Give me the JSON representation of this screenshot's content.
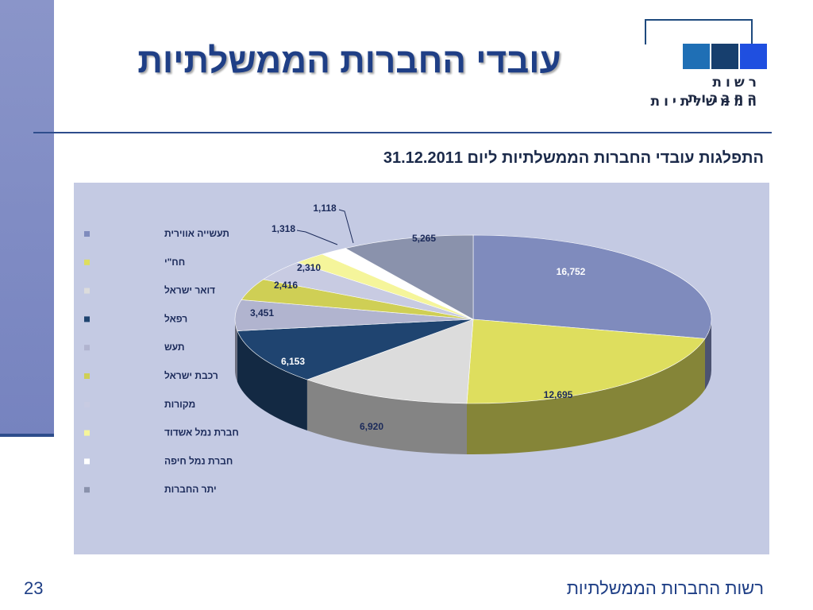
{
  "slide": {
    "title": "עובדי החברות הממשלתיות",
    "footer": "רשות החברות הממשלתיות",
    "page_number": "23"
  },
  "logo": {
    "line1": "רשות החברות",
    "line2": "הממשלתיות",
    "square_colors": [
      "#1f6fb5",
      "#173f6e",
      "#1f4fe0"
    ]
  },
  "chart_data": {
    "type": "pie",
    "title": "התפלגות עובדי החברות הממשלתיות ליום  31.12.2011",
    "legend_position": "left",
    "categories": [
      "תעשייה אווירית",
      "חח\"י",
      "דואר ישראל",
      "רפאל",
      "תעש",
      "רכבת ישראל",
      "מקורות",
      "חברת נמל אשדוד",
      "חברת נמל חיפה",
      "יתר החברות"
    ],
    "values": [
      16752,
      12695,
      6920,
      6153,
      3451,
      2416,
      2310,
      1318,
      1118,
      5265
    ],
    "value_labels": [
      "16,752",
      "12,695",
      "6,920",
      "6,153",
      "3,451",
      "2,416",
      "2,310",
      "1,318",
      "1,118",
      "5,265"
    ],
    "colors": [
      "#7f8bbd",
      "#dede5e",
      "#dcdcdc",
      "#1f4470",
      "#b1b4cf",
      "#cfcf55",
      "#c8cbe2",
      "#f5f59b",
      "#ffffff",
      "#8a92ac"
    ]
  }
}
